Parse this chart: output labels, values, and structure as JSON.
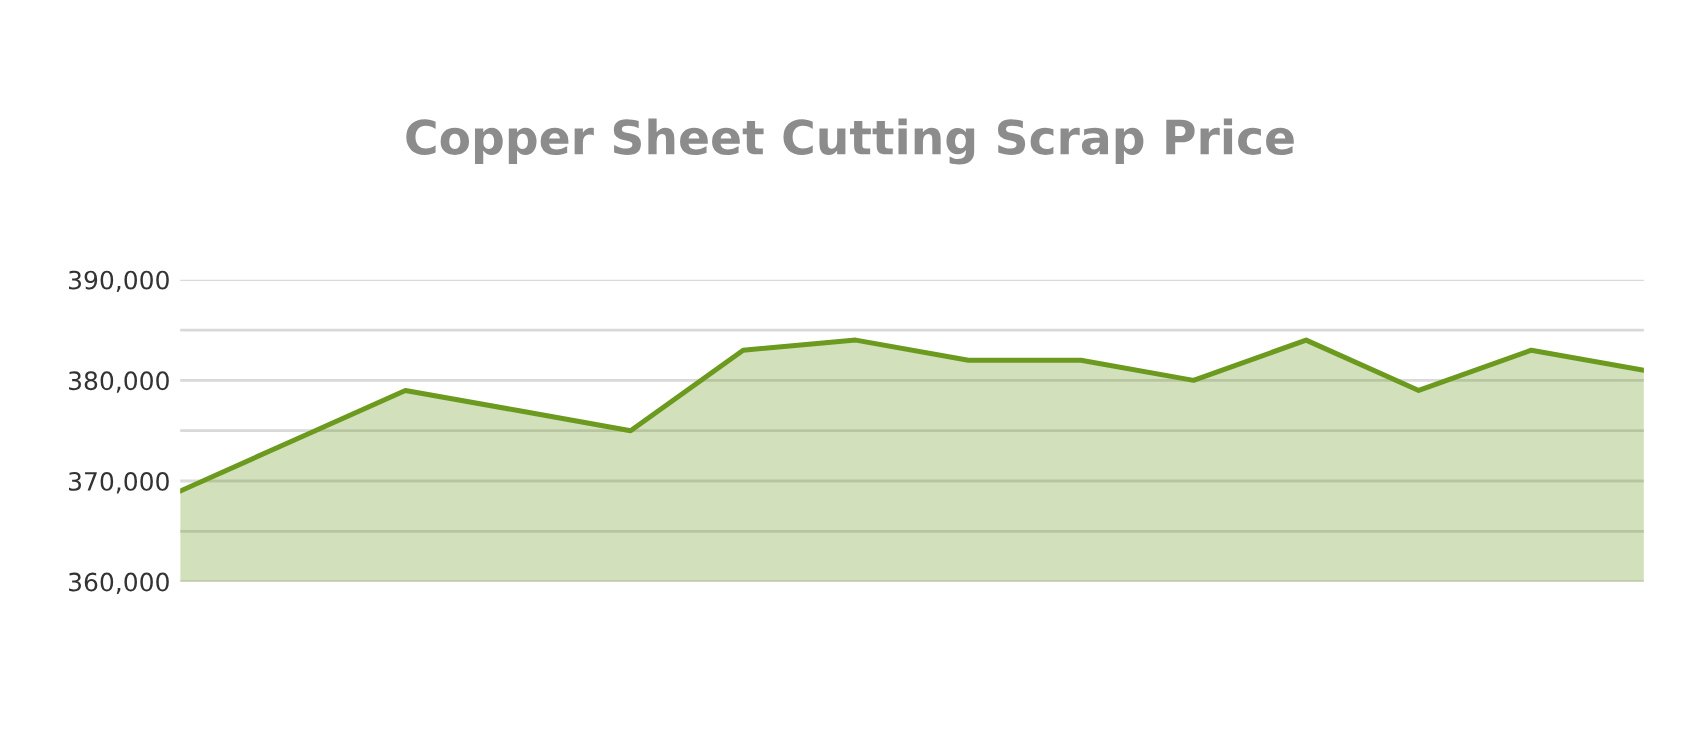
{
  "chart_data": {
    "type": "area",
    "title": "Copper Sheet Cutting Scrap Price",
    "categories": [
      null,
      null,
      null,
      null,
      null,
      null,
      null,
      null,
      null,
      null,
      null,
      null,
      null,
      null
    ],
    "series": [
      {
        "color": "#6b9a1f",
        "values": [
          369000,
          374000,
          379000,
          377000,
          375000,
          383000,
          384000,
          382000,
          382000,
          380000,
          384000,
          379000,
          383000,
          381000
        ]
      }
    ],
    "ylim": [
      360000,
      390000
    ],
    "yticks": [
      {
        "value": 360000,
        "label": "360,000"
      },
      {
        "value": 365000,
        "label": null
      },
      {
        "value": 370000,
        "label": "370,000"
      },
      {
        "value": 375000,
        "label": null
      },
      {
        "value": 380000,
        "label": "380,000"
      },
      {
        "value": 385000,
        "label": null
      },
      {
        "value": 390000,
        "label": "390,000"
      }
    ],
    "grid": "y",
    "marker": "none",
    "line_style": "solid",
    "legend": false
  }
}
